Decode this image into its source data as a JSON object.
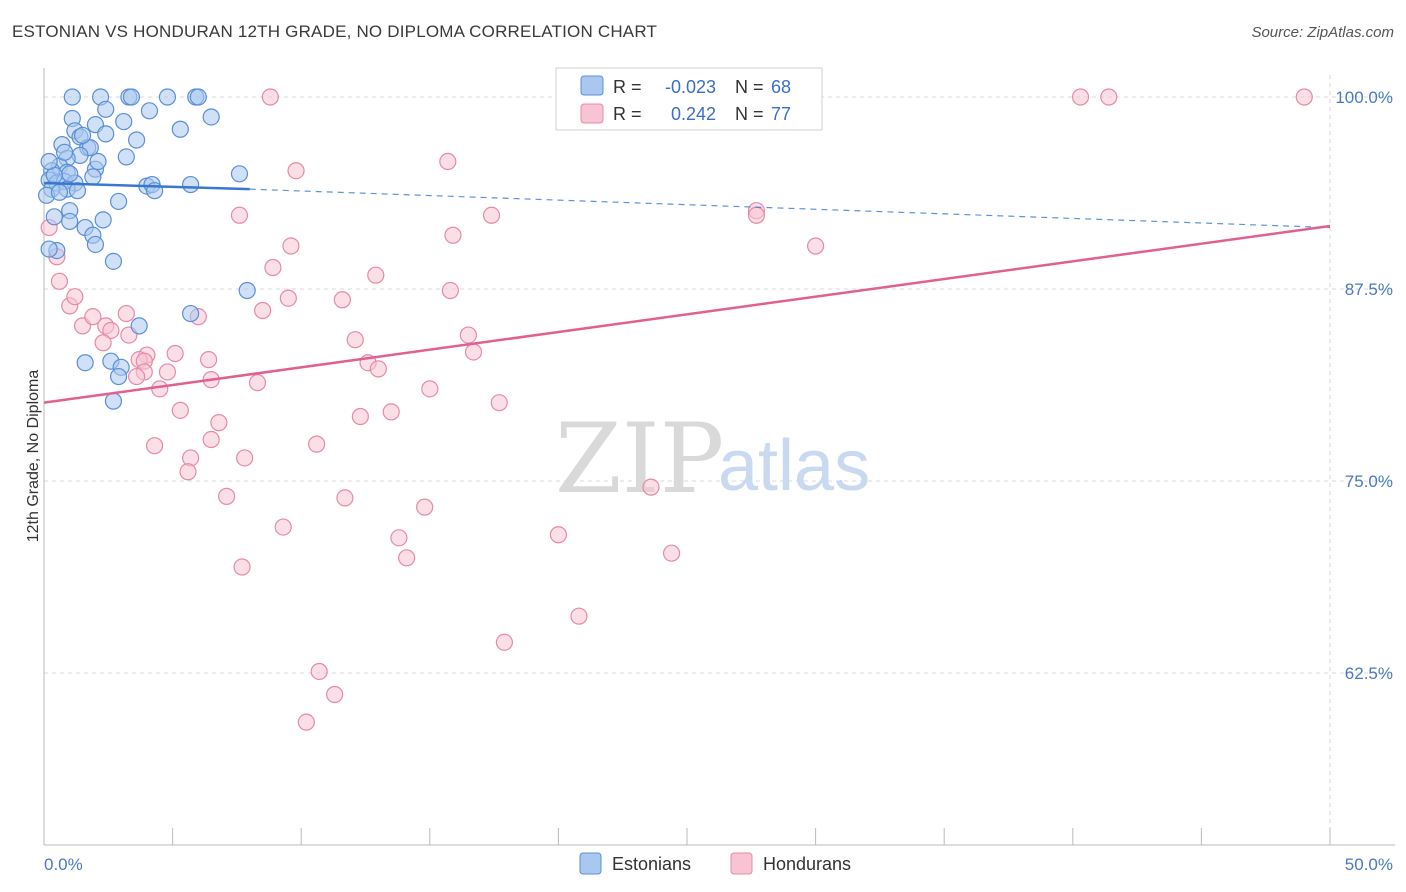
{
  "title": "ESTONIAN VS HONDURAN 12TH GRADE, NO DIPLOMA CORRELATION CHART",
  "source": "Source: ZipAtlas.com",
  "watermark": {
    "zip": "ZIP",
    "atlas": "atlas"
  },
  "colors": {
    "estonians_fill": "#a9c8f0",
    "estonians_stroke": "#5a8fd6",
    "estonians_line": "#3a78d0",
    "hondurans_fill": "#f8c4d4",
    "hondurans_stroke": "#e68aa8",
    "hondurans_line": "#e06090",
    "grid": "#d8d8d8",
    "tick_text": "#4a78c6"
  },
  "legend": {
    "rows": [
      {
        "r_label": "R =",
        "r_value": "-0.023",
        "n_label": "N =",
        "n_value": "68"
      },
      {
        "r_label": "R =",
        "r_value": "0.242",
        "n_label": "N =",
        "n_value": "77"
      }
    ]
  },
  "bottom_legend": {
    "estonians": "Estonians",
    "hondurans": "Hondurans"
  },
  "chart_data": {
    "type": "scatter",
    "xlabel": "",
    "ylabel": "12th Grade, No Diploma",
    "xlim": [
      0,
      50
    ],
    "ylim": [
      52.5,
      101.5
    ],
    "x_tick_labels": [
      "0.0%",
      "50.0%"
    ],
    "y_ticks": [
      62.5,
      75.0,
      87.5,
      100.0
    ],
    "y_tick_labels": [
      "62.5%",
      "75.0%",
      "87.5%",
      "100.0%"
    ],
    "grid": true,
    "series": [
      {
        "name": "Estonians",
        "trend": {
          "x0": 0,
          "y0": 94.4,
          "x1": 8,
          "y1": 94.0,
          "dash_x1": 50,
          "dash_y1": 91.5
        },
        "points": [
          [
            1.1,
            100
          ],
          [
            2.2,
            100
          ],
          [
            3.3,
            100
          ],
          [
            3.4,
            100
          ],
          [
            4.8,
            100
          ],
          [
            5.9,
            100
          ],
          [
            6.0,
            100
          ],
          [
            2.4,
            99.2
          ],
          [
            4.1,
            99.1
          ],
          [
            6.5,
            98.7
          ],
          [
            1.1,
            98.6
          ],
          [
            2.0,
            98.2
          ],
          [
            3.1,
            98.4
          ],
          [
            5.3,
            97.9
          ],
          [
            1.2,
            97.8
          ],
          [
            2.4,
            97.6
          ],
          [
            1.4,
            97.4
          ],
          [
            0.7,
            96.9
          ],
          [
            1.7,
            96.7
          ],
          [
            1.8,
            96.7
          ],
          [
            1.4,
            96.2
          ],
          [
            0.9,
            96.0
          ],
          [
            0.6,
            95.5
          ],
          [
            0.3,
            95.2
          ],
          [
            0.9,
            95.1
          ],
          [
            2.0,
            95.3
          ],
          [
            7.6,
            95.0
          ],
          [
            0.2,
            94.6
          ],
          [
            0.5,
            94.4
          ],
          [
            0.8,
            94.5
          ],
          [
            1.2,
            94.4
          ],
          [
            4.0,
            94.2
          ],
          [
            4.2,
            94.3
          ],
          [
            5.7,
            94.3
          ],
          [
            0.3,
            94.0
          ],
          [
            0.9,
            94.0
          ],
          [
            0.1,
            93.6
          ],
          [
            1.0,
            92.6
          ],
          [
            0.4,
            92.2
          ],
          [
            2.3,
            92.0
          ],
          [
            1.6,
            91.5
          ],
          [
            1.9,
            91.0
          ],
          [
            2.0,
            90.4
          ],
          [
            0.5,
            90.0
          ],
          [
            0.2,
            90.1
          ],
          [
            2.7,
            89.3
          ],
          [
            7.9,
            87.4
          ],
          [
            5.7,
            85.9
          ],
          [
            3.7,
            85.1
          ],
          [
            2.6,
            82.8
          ],
          [
            3.0,
            82.4
          ],
          [
            1.6,
            82.7
          ],
          [
            2.9,
            81.8
          ],
          [
            2.7,
            80.2
          ],
          [
            1.0,
            95.0
          ],
          [
            0.4,
            94.9
          ],
          [
            1.5,
            97.5
          ],
          [
            0.8,
            96.4
          ],
          [
            2.1,
            95.8
          ],
          [
            3.2,
            96.1
          ],
          [
            1.3,
            93.9
          ],
          [
            0.6,
            93.8
          ],
          [
            2.9,
            93.2
          ],
          [
            1.9,
            94.8
          ],
          [
            0.2,
            95.8
          ],
          [
            4.3,
            93.9
          ],
          [
            3.6,
            97.2
          ],
          [
            1.0,
            91.9
          ]
        ]
      },
      {
        "name": "Hondurans",
        "trend": {
          "x0": 0,
          "y0": 80.1,
          "x1": 50,
          "y1": 91.6
        },
        "points": [
          [
            8.8,
            100
          ],
          [
            25.5,
            100
          ],
          [
            28.7,
            100
          ],
          [
            40.3,
            100
          ],
          [
            41.4,
            100
          ],
          [
            49.0,
            100
          ],
          [
            15.7,
            95.8
          ],
          [
            9.8,
            95.2
          ],
          [
            7.6,
            92.3
          ],
          [
            17.4,
            92.3
          ],
          [
            27.7,
            92.6
          ],
          [
            15.9,
            91.0
          ],
          [
            9.6,
            90.3
          ],
          [
            30.0,
            90.3
          ],
          [
            8.9,
            88.9
          ],
          [
            12.9,
            88.4
          ],
          [
            15.8,
            87.4
          ],
          [
            9.5,
            86.9
          ],
          [
            11.6,
            86.8
          ],
          [
            0.2,
            91.5
          ],
          [
            0.5,
            89.6
          ],
          [
            0.6,
            88.0
          ],
          [
            1.0,
            86.4
          ],
          [
            1.2,
            87.0
          ],
          [
            1.5,
            85.1
          ],
          [
            1.9,
            85.7
          ],
          [
            3.2,
            85.9
          ],
          [
            6.0,
            85.7
          ],
          [
            8.5,
            86.1
          ],
          [
            2.4,
            85.1
          ],
          [
            2.6,
            84.8
          ],
          [
            2.3,
            84.0
          ],
          [
            3.3,
            84.5
          ],
          [
            12.1,
            84.2
          ],
          [
            16.5,
            84.5
          ],
          [
            16.7,
            83.4
          ],
          [
            5.1,
            83.3
          ],
          [
            4.0,
            83.2
          ],
          [
            3.7,
            82.9
          ],
          [
            6.4,
            82.9
          ],
          [
            3.9,
            82.8
          ],
          [
            12.6,
            82.7
          ],
          [
            13.0,
            82.3
          ],
          [
            3.9,
            82.1
          ],
          [
            4.8,
            82.1
          ],
          [
            3.6,
            81.8
          ],
          [
            6.5,
            81.6
          ],
          [
            8.3,
            81.4
          ],
          [
            4.5,
            81.0
          ],
          [
            15.0,
            81.0
          ],
          [
            17.7,
            80.1
          ],
          [
            5.3,
            79.6
          ],
          [
            13.5,
            79.5
          ],
          [
            12.3,
            79.2
          ],
          [
            6.8,
            78.8
          ],
          [
            6.5,
            77.7
          ],
          [
            10.6,
            77.4
          ],
          [
            4.3,
            77.3
          ],
          [
            5.7,
            76.5
          ],
          [
            7.8,
            76.5
          ],
          [
            5.6,
            75.6
          ],
          [
            23.6,
            74.6
          ],
          [
            7.1,
            74.0
          ],
          [
            11.7,
            73.9
          ],
          [
            14.8,
            73.3
          ],
          [
            9.3,
            72.0
          ],
          [
            20.0,
            71.5
          ],
          [
            13.8,
            71.3
          ],
          [
            14.1,
            70.0
          ],
          [
            24.4,
            70.3
          ],
          [
            7.7,
            69.4
          ],
          [
            20.8,
            66.2
          ],
          [
            17.9,
            64.5
          ],
          [
            10.7,
            62.6
          ],
          [
            11.3,
            61.1
          ],
          [
            10.2,
            59.3
          ],
          [
            27.7,
            92.3
          ]
        ]
      }
    ]
  }
}
